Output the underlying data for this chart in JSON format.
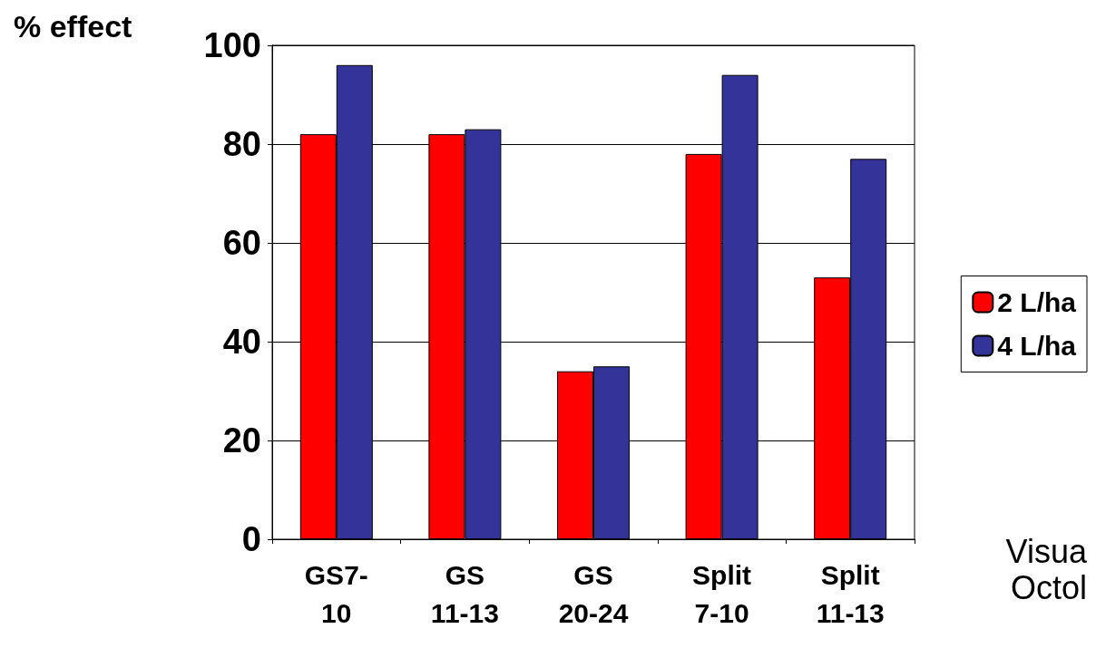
{
  "chart_data": {
    "type": "bar",
    "ylabel": "% effect",
    "categories": [
      "GS7-\n10",
      "GS\n11-13",
      "GS\n20-24",
      "Split\n7-10",
      "Split\n11-13"
    ],
    "series": [
      {
        "name": "2 L/ha",
        "color": "#ff0000",
        "values": [
          82,
          82,
          34,
          78,
          53
        ]
      },
      {
        "name": "4 L/ha",
        "color": "#333399",
        "values": [
          96,
          83,
          35,
          94,
          77
        ]
      }
    ],
    "ylim": [
      0,
      100
    ],
    "yticks": [
      0,
      20,
      40,
      60,
      80,
      100
    ],
    "grid": "y",
    "legend": "right",
    "annotations": [
      "Visua",
      "Octol"
    ]
  }
}
